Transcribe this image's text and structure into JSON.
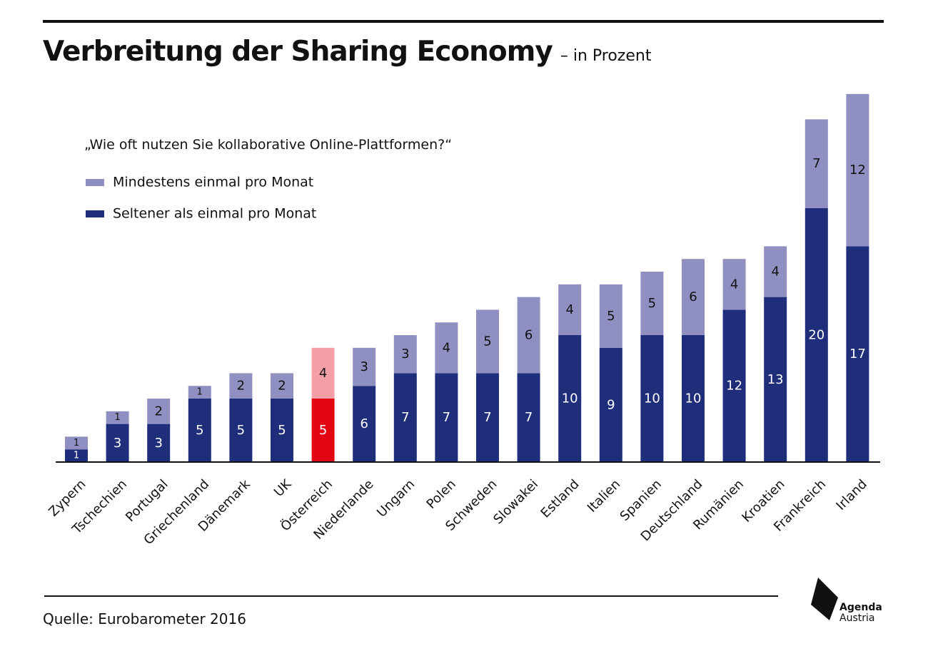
{
  "header": {
    "title": "Verbreitung der Sharing Economy",
    "subtitle": "– in Prozent"
  },
  "question": "„Wie oft nutzen Sie kollaborative Online-Plattformen?“",
  "legend": [
    {
      "label": "Mindestens einmal pro Monat",
      "color": "#8f8fc2"
    },
    {
      "label": "Seltener als einmal pro Monat",
      "color": "#1e2e7a"
    }
  ],
  "source": "Quelle: Eurobarometer 2016",
  "logo": {
    "line1": "Agenda",
    "line2": "Austria"
  },
  "colors": {
    "dark": "#1e2e7a",
    "light": "#8f8fc2",
    "highlight_dark": "#e30613",
    "highlight_light": "#f3a1a6",
    "axis": "#111111"
  },
  "chart_data": {
    "type": "bar",
    "stacked": true,
    "highlight_category": "Österreich",
    "categories": [
      "Zypern",
      "Tschechien",
      "Portugal",
      "Griechenland",
      "Dänemark",
      "UK",
      "Österreich",
      "Niederlande",
      "Ungarn",
      "Polen",
      "Schweden",
      "Slowakei",
      "Estland",
      "Italien",
      "Spanien",
      "Deutschland",
      "Rumänien",
      "Kroatien",
      "Frankreich",
      "Irland"
    ],
    "series": [
      {
        "name": "Seltener als einmal pro Monat",
        "values": [
          1,
          3,
          3,
          5,
          5,
          5,
          5,
          6,
          7,
          7,
          7,
          7,
          10,
          9,
          10,
          10,
          12,
          13,
          20,
          17
        ]
      },
      {
        "name": "Mindestens einmal pro Monat",
        "values": [
          1,
          1,
          2,
          1,
          2,
          2,
          4,
          3,
          3,
          4,
          5,
          6,
          4,
          5,
          5,
          6,
          4,
          4,
          7,
          12
        ]
      }
    ],
    "ylim": [
      0,
      29
    ],
    "grid": false
  }
}
